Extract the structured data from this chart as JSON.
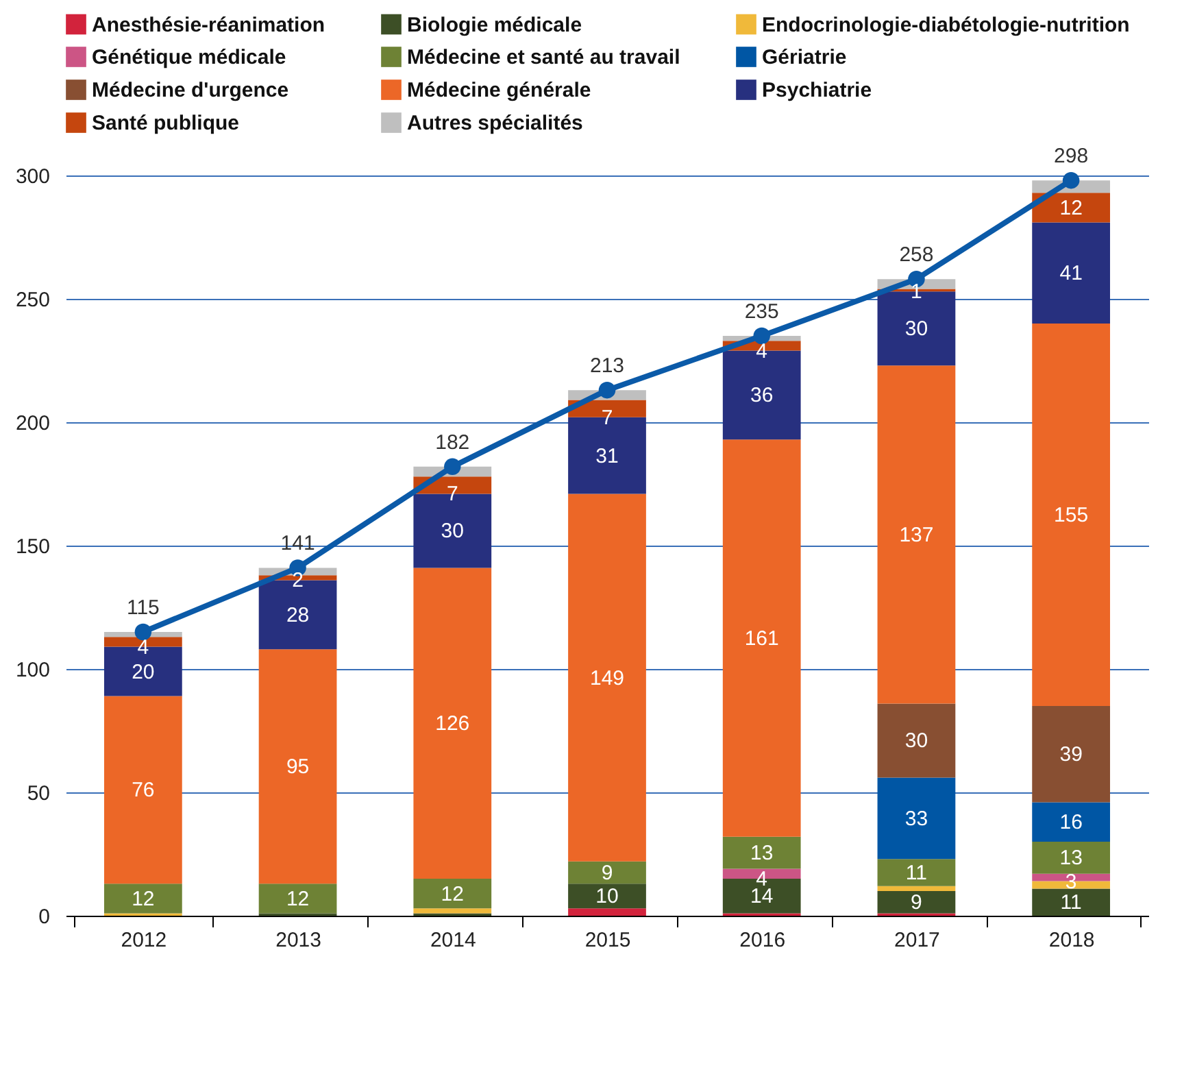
{
  "chart_data": {
    "type": "bar",
    "stacked": true,
    "categories": [
      "2012",
      "2013",
      "2014",
      "2015",
      "2016",
      "2017",
      "2018"
    ],
    "ylim": [
      0,
      300
    ],
    "yticks": [
      0,
      50,
      100,
      150,
      200,
      250,
      300
    ],
    "grid": "y",
    "legend": "top",
    "series": [
      {
        "name": "Anesthésie-réanimation",
        "color": "#d2233c",
        "values": [
          0,
          0,
          0,
          3,
          1,
          1,
          0
        ],
        "value_labels": [
          null,
          null,
          null,
          null,
          null,
          null,
          null
        ]
      },
      {
        "name": "Biologie médicale",
        "color": "#3d4f26",
        "values": [
          0,
          1,
          1,
          10,
          14,
          9,
          11
        ],
        "value_labels": [
          null,
          null,
          null,
          "10",
          "14",
          "9",
          "11"
        ]
      },
      {
        "name": "Endocrinologie-diabétologie-nutrition",
        "color": "#f0b93a",
        "values": [
          1,
          0,
          2,
          0,
          0,
          2,
          3
        ],
        "value_labels": [
          null,
          null,
          null,
          null,
          null,
          null,
          null
        ]
      },
      {
        "name": "Génétique médicale",
        "color": "#cc5585",
        "values": [
          0,
          0,
          0,
          0,
          4,
          0,
          3
        ],
        "value_labels": [
          null,
          null,
          null,
          null,
          "4",
          null,
          "3"
        ]
      },
      {
        "name": "Médecine et santé au travail",
        "color": "#6e8235",
        "values": [
          12,
          12,
          12,
          9,
          13,
          11,
          13
        ],
        "value_labels": [
          "12",
          "12",
          "12",
          "9",
          "13",
          "11",
          "13"
        ]
      },
      {
        "name": "Gériatrie",
        "color": "#0056a4",
        "values": [
          0,
          0,
          0,
          0,
          0,
          33,
          16
        ],
        "value_labels": [
          null,
          null,
          null,
          null,
          null,
          "33",
          "16"
        ]
      },
      {
        "name": "Médecine d'urgence",
        "color": "#884f32",
        "values": [
          0,
          0,
          0,
          0,
          0,
          30,
          39
        ],
        "value_labels": [
          null,
          null,
          null,
          null,
          null,
          "30",
          "39"
        ]
      },
      {
        "name": "Médecine générale",
        "color": "#ec6727",
        "values": [
          76,
          95,
          126,
          149,
          161,
          137,
          155
        ],
        "value_labels": [
          "76",
          "95",
          "126",
          "149",
          "161",
          "137",
          "155"
        ]
      },
      {
        "name": "Psychiatrie",
        "color": "#27307f",
        "values": [
          20,
          28,
          30,
          31,
          36,
          30,
          41
        ],
        "value_labels": [
          "20",
          "28",
          "30",
          "31",
          "36",
          "30",
          "41"
        ]
      },
      {
        "name": "Santé publique",
        "color": "#c5460e",
        "values": [
          4,
          2,
          7,
          7,
          4,
          1,
          12
        ],
        "value_labels": [
          "4",
          "2",
          "7",
          "7",
          "4",
          "1",
          "12"
        ]
      },
      {
        "name": "Autres spécialités",
        "color": "#bfbfbf",
        "values": [
          2,
          3,
          4,
          4,
          2,
          4,
          5
        ],
        "value_labels": [
          null,
          null,
          null,
          null,
          null,
          null,
          null
        ]
      },
      {
        "type": "line",
        "color": "#0b5aa8",
        "marker": "circle",
        "values": [
          115,
          141,
          182,
          213,
          235,
          258,
          298
        ],
        "value_labels": [
          "115",
          "141",
          "182",
          "213",
          "235",
          "258",
          "298"
        ]
      }
    ]
  }
}
